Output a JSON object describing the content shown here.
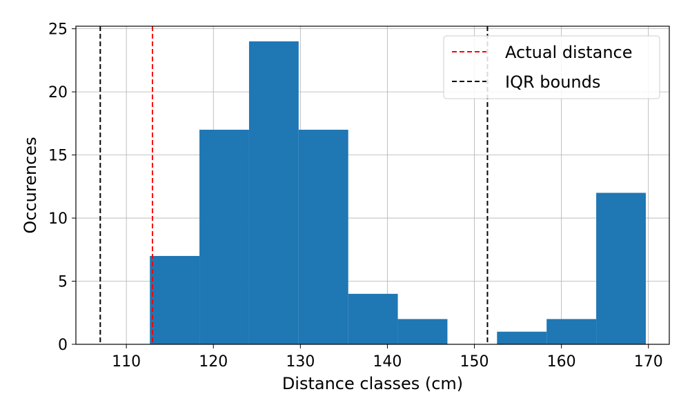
{
  "chart_data": {
    "type": "histogram",
    "title": "",
    "xlabel": "Distance classes (cm)",
    "ylabel": "Occurences",
    "xlim": [
      104.2,
      172.4
    ],
    "ylim": [
      0,
      25.2
    ],
    "xticks": [
      110,
      120,
      130,
      140,
      150,
      160,
      170
    ],
    "yticks": [
      0,
      5,
      10,
      15,
      20,
      25
    ],
    "grid": true,
    "legend_position": "top-right",
    "bar_color": "#1f77b4",
    "bins": [
      {
        "x0": 112.7,
        "x1": 118.4,
        "count": 7
      },
      {
        "x0": 118.4,
        "x1": 124.1,
        "count": 17
      },
      {
        "x0": 124.1,
        "x1": 129.8,
        "count": 24
      },
      {
        "x0": 129.8,
        "x1": 135.5,
        "count": 17
      },
      {
        "x0": 135.5,
        "x1": 141.2,
        "count": 4
      },
      {
        "x0": 141.2,
        "x1": 146.9,
        "count": 2
      },
      {
        "x0": 146.9,
        "x1": 152.6,
        "count": 0
      },
      {
        "x0": 152.6,
        "x1": 158.3,
        "count": 1
      },
      {
        "x0": 158.3,
        "x1": 164.0,
        "count": 2
      },
      {
        "x0": 164.0,
        "x1": 169.7,
        "count": 12
      }
    ],
    "reference_lines": [
      {
        "name": "Actual distance",
        "x": 113.0,
        "color": "#ff0000",
        "style": "dashed"
      },
      {
        "name": "IQR bounds",
        "x": 107.0,
        "color": "#000000",
        "style": "dashed"
      },
      {
        "name": "",
        "x": 151.5,
        "color": "#000000",
        "style": "dashed"
      }
    ],
    "legend": [
      {
        "label": "Actual distance",
        "color": "#ff0000",
        "style": "dashed"
      },
      {
        "label": "IQR bounds",
        "color": "#000000",
        "style": "dashed"
      }
    ]
  }
}
